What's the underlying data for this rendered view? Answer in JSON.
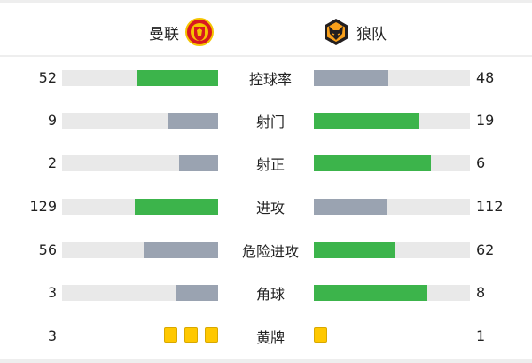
{
  "header": {
    "home": {
      "name": "曼联",
      "logo": "manchester-united-crest"
    },
    "away": {
      "name": "狼队",
      "logo": "wolves-crest"
    }
  },
  "colors": {
    "leader": "#3cb44b",
    "trailer": "#9aa3b1",
    "track": "#e9e9e9",
    "yellow_card": "#ffc800"
  },
  "stats": [
    {
      "label": "控球率",
      "home": 52,
      "away": 48
    },
    {
      "label": "射门",
      "home": 9,
      "away": 19
    },
    {
      "label": "射正",
      "home": 2,
      "away": 6
    },
    {
      "label": "进攻",
      "home": 129,
      "away": 112
    },
    {
      "label": "危险进攻",
      "home": 56,
      "away": 62
    },
    {
      "label": "角球",
      "home": 3,
      "away": 8
    }
  ],
  "yellow_cards": {
    "label": "黄牌",
    "home": 3,
    "away": 1
  }
}
